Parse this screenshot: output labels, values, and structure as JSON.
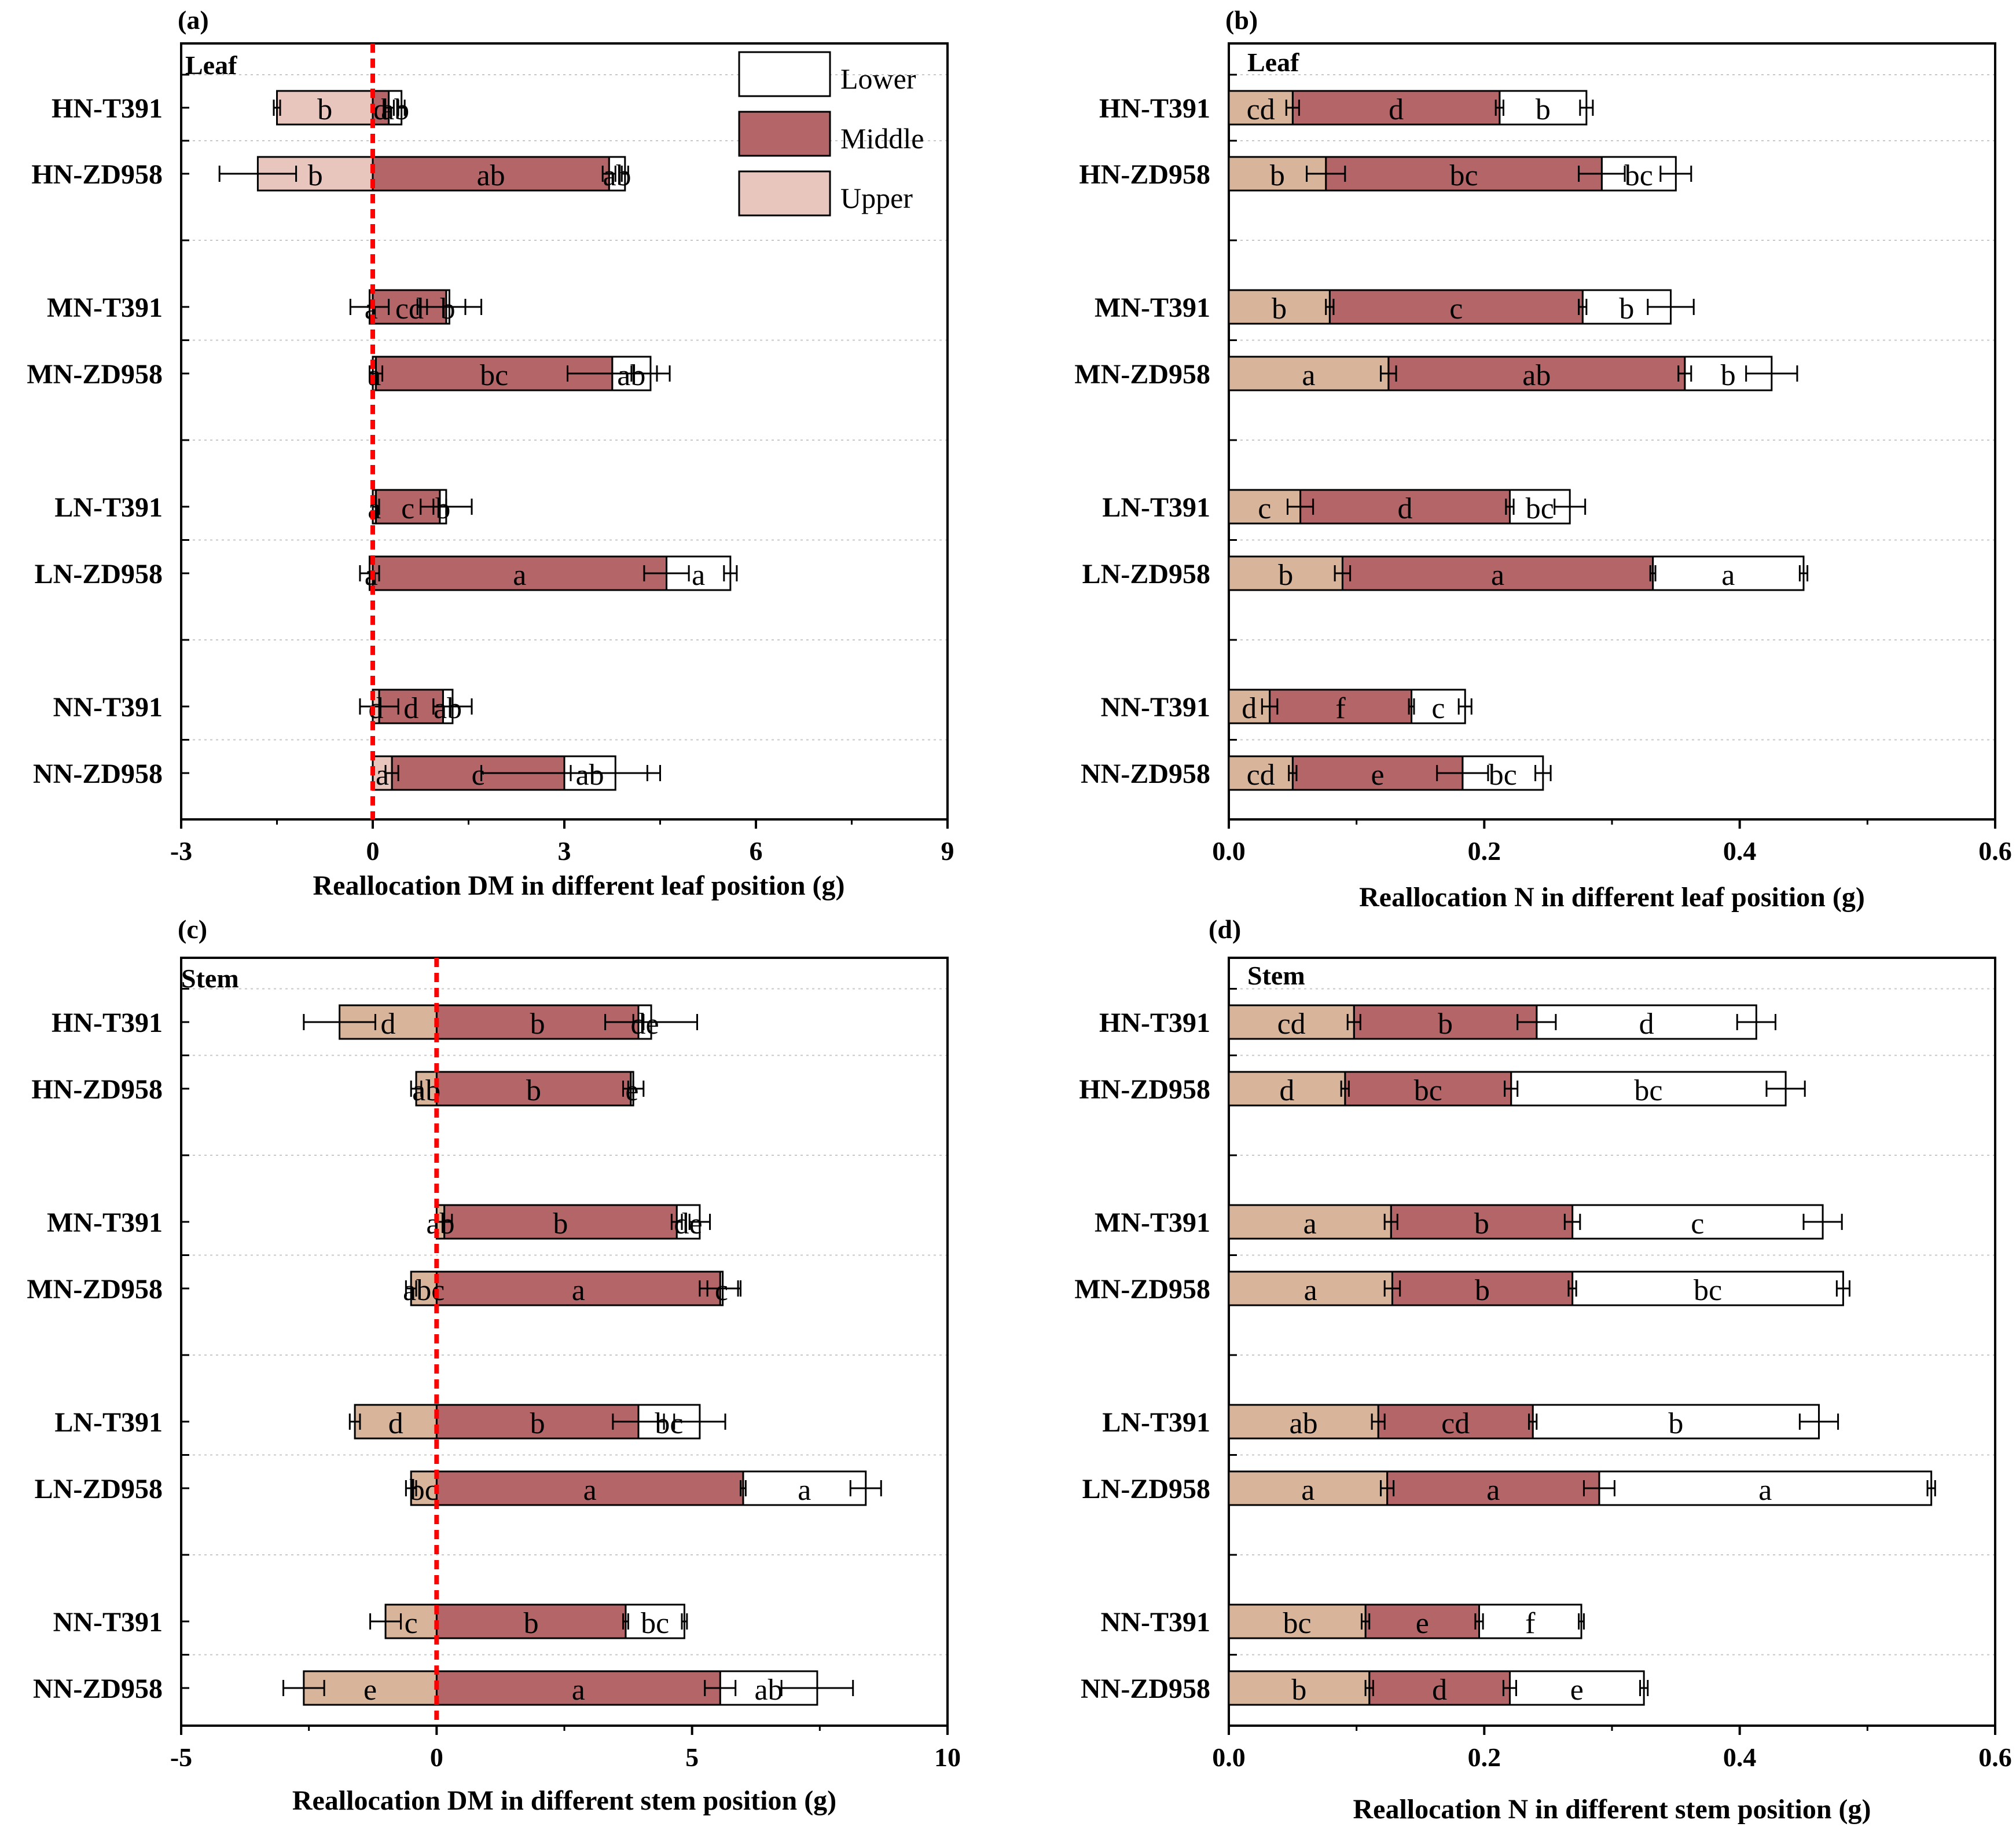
{
  "legend": {
    "lower": "Lower",
    "middle": "Middle",
    "upper": "Upper"
  },
  "colors": {
    "lower": "#ffffff",
    "middle": "#b36567",
    "upper_leaf": "#e9c6bd",
    "upper_other": "#d8b49a",
    "zero_line": "#ff0000",
    "grid": "#c8c8c8",
    "axis": "#000000"
  },
  "chart_data": [
    {
      "id": "a",
      "panel_label": "(a)",
      "type": "bar",
      "stacked": "diverging",
      "corner_label": "Leaf",
      "xlabel": "Reallocation DM in different leaf position (g)",
      "xlim": [
        -3,
        9
      ],
      "xticks": [
        -3,
        0,
        3,
        6,
        9
      ],
      "xtick_labels": [
        "-3",
        "0",
        "3",
        "6",
        "9"
      ],
      "zero_line": true,
      "show_legend": true,
      "categories": [
        "HN-T391",
        "HN-ZD958",
        "MN-T391",
        "MN-ZD958",
        "LN-T391",
        "LN-ZD958",
        "NN-T391",
        "NN-ZD958"
      ],
      "series": [
        {
          "name": "Upper",
          "values": [
            -1.5,
            -1.8,
            -0.05,
            0.05,
            0.05,
            -0.05,
            0.1,
            0.3
          ],
          "errors": [
            0.05,
            0.6,
            0.3,
            0.1,
            0.05,
            0.15,
            0.3,
            0.1
          ],
          "letters": [
            "b",
            "b",
            "a",
            "a",
            "a",
            "a",
            "d",
            "a"
          ]
        },
        {
          "name": "Middle",
          "values": [
            0.25,
            3.7,
            1.15,
            3.7,
            1.0,
            4.6,
            1.0,
            2.7
          ],
          "errors": [
            0.08,
            0.1,
            0.3,
            0.7,
            0.1,
            0.35,
            0.15,
            1.3
          ],
          "letters": [
            "d",
            "ab",
            "cd",
            "bc",
            "c",
            "a",
            "d",
            "c"
          ]
        },
        {
          "name": "Lower",
          "values": [
            0.2,
            0.25,
            0.05,
            0.6,
            0.1,
            1.0,
            0.15,
            0.8
          ],
          "errors": [
            0.05,
            0.05,
            0.5,
            0.3,
            0.4,
            0.1,
            0.3,
            0.7
          ],
          "letters": [
            "ab",
            "ab",
            "b",
            "ab",
            "b",
            "a",
            "ab",
            "ab"
          ]
        }
      ]
    },
    {
      "id": "b",
      "panel_label": "(b)",
      "type": "bar",
      "stacked": "positive",
      "corner_label": "Leaf",
      "xlabel": "Reallocation N in different leaf position (g)",
      "xlim": [
        0,
        0.6
      ],
      "xticks": [
        0,
        0.2,
        0.4,
        0.6
      ],
      "xtick_labels": [
        "0.0",
        "0.2",
        "0.4",
        "0.6"
      ],
      "zero_line": false,
      "show_legend": false,
      "categories": [
        "HN-T391",
        "HN-ZD958",
        "MN-T391",
        "MN-ZD958",
        "LN-T391",
        "LN-ZD958",
        "NN-T391",
        "NN-ZD958"
      ],
      "series": [
        {
          "name": "Upper",
          "values": [
            0.05,
            0.076,
            0.079,
            0.125,
            0.056,
            0.089,
            0.032,
            0.05
          ],
          "errors": [
            0.005,
            0.015,
            0.003,
            0.006,
            0.01,
            0.006,
            0.006,
            0.003
          ],
          "letters": [
            "cd",
            "b",
            "b",
            "a",
            "c",
            "b",
            "d",
            "cd"
          ]
        },
        {
          "name": "Middle",
          "values": [
            0.162,
            0.216,
            0.198,
            0.232,
            0.164,
            0.243,
            0.111,
            0.133
          ],
          "errors": [
            0.003,
            0.018,
            0.003,
            0.005,
            0.003,
            0.002,
            0.002,
            0.02
          ],
          "letters": [
            "d",
            "bc",
            "c",
            "ab",
            "d",
            "a",
            "f",
            "e"
          ]
        },
        {
          "name": "Lower",
          "values": [
            0.068,
            0.058,
            0.069,
            0.068,
            0.047,
            0.118,
            0.042,
            0.063
          ],
          "errors": [
            0.005,
            0.012,
            0.018,
            0.02,
            0.012,
            0.003,
            0.005,
            0.006
          ],
          "letters": [
            "b",
            "bc",
            "b",
            "b",
            "bc",
            "a",
            "c",
            "bc"
          ]
        }
      ]
    },
    {
      "id": "c",
      "panel_label": "(c)",
      "type": "bar",
      "stacked": "diverging",
      "corner_label": "Stem",
      "xlabel": "Reallocation DM in different stem position (g)",
      "xlim": [
        -5,
        10
      ],
      "xticks": [
        -5,
        0,
        5,
        10
      ],
      "xtick_labels": [
        "-5",
        "0",
        "5",
        "10"
      ],
      "zero_line": true,
      "show_legend": false,
      "categories": [
        "HN-T391",
        "HN-ZD958",
        "MN-T391",
        "MN-ZD958",
        "LN-T391",
        "LN-ZD958",
        "NN-T391",
        "NN-ZD958"
      ],
      "series": [
        {
          "name": "Upper",
          "values": [
            -1.9,
            -0.4,
            0.15,
            -0.5,
            -1.6,
            -0.5,
            -1.0,
            -2.6
          ],
          "errors": [
            0.7,
            0.1,
            0.15,
            0.1,
            0.1,
            0.1,
            0.3,
            0.4
          ],
          "letters": [
            "d",
            "ab",
            "ab",
            "abc",
            "d",
            "bc",
            "c",
            "e"
          ]
        },
        {
          "name": "Middle",
          "values": [
            3.95,
            3.8,
            4.55,
            5.55,
            3.95,
            6.0,
            3.7,
            5.55
          ],
          "errors": [
            0.1,
            0.05,
            0.1,
            0.4,
            0.5,
            0.05,
            0.05,
            0.3
          ],
          "letters": [
            "b",
            "b",
            "b",
            "a",
            "b",
            "a",
            "b",
            "a"
          ]
        },
        {
          "name": "Lower",
          "values": [
            0.25,
            0.05,
            0.45,
            0.05,
            1.2,
            2.4,
            1.15,
            1.9
          ],
          "errors": [
            0.9,
            0.2,
            0.2,
            0.3,
            0.5,
            0.3,
            0.05,
            0.7
          ],
          "letters": [
            "de",
            "e",
            "de",
            "c",
            "bc",
            "a",
            "bc",
            "ab"
          ]
        }
      ]
    },
    {
      "id": "d",
      "panel_label": "(d)",
      "type": "bar",
      "stacked": "positive",
      "corner_label": "Stem",
      "xlabel": "Reallocation N in different stem position (g)",
      "xlim": [
        0,
        0.6
      ],
      "xticks": [
        0,
        0.2,
        0.4,
        0.6
      ],
      "xtick_labels": [
        "0.0",
        "0.2",
        "0.4",
        "0.6"
      ],
      "zero_line": false,
      "show_legend": false,
      "categories": [
        "HN-T391",
        "HN-ZD958",
        "MN-T391",
        "MN-ZD958",
        "LN-T391",
        "LN-ZD958",
        "NN-T391",
        "NN-ZD958"
      ],
      "series": [
        {
          "name": "Upper",
          "values": [
            0.098,
            0.091,
            0.127,
            0.128,
            0.117,
            0.124,
            0.107,
            0.11
          ],
          "errors": [
            0.005,
            0.003,
            0.005,
            0.006,
            0.005,
            0.005,
            0.003,
            0.003
          ],
          "letters": [
            "cd",
            "d",
            "a",
            "a",
            "ab",
            "a",
            "bc",
            "b"
          ]
        },
        {
          "name": "Middle",
          "values": [
            0.143,
            0.13,
            0.142,
            0.141,
            0.121,
            0.166,
            0.089,
            0.11
          ],
          "errors": [
            0.015,
            0.005,
            0.006,
            0.003,
            0.003,
            0.012,
            0.003,
            0.005
          ],
          "letters": [
            "b",
            "bc",
            "b",
            "b",
            "cd",
            "a",
            "e",
            "d"
          ]
        },
        {
          "name": "Lower",
          "values": [
            0.172,
            0.215,
            0.196,
            0.212,
            0.224,
            0.26,
            0.08,
            0.105
          ],
          "errors": [
            0.015,
            0.015,
            0.015,
            0.005,
            0.015,
            0.003,
            0.002,
            0.003
          ],
          "letters": [
            "d",
            "bc",
            "c",
            "bc",
            "b",
            "a",
            "f",
            "e"
          ]
        }
      ]
    }
  ]
}
